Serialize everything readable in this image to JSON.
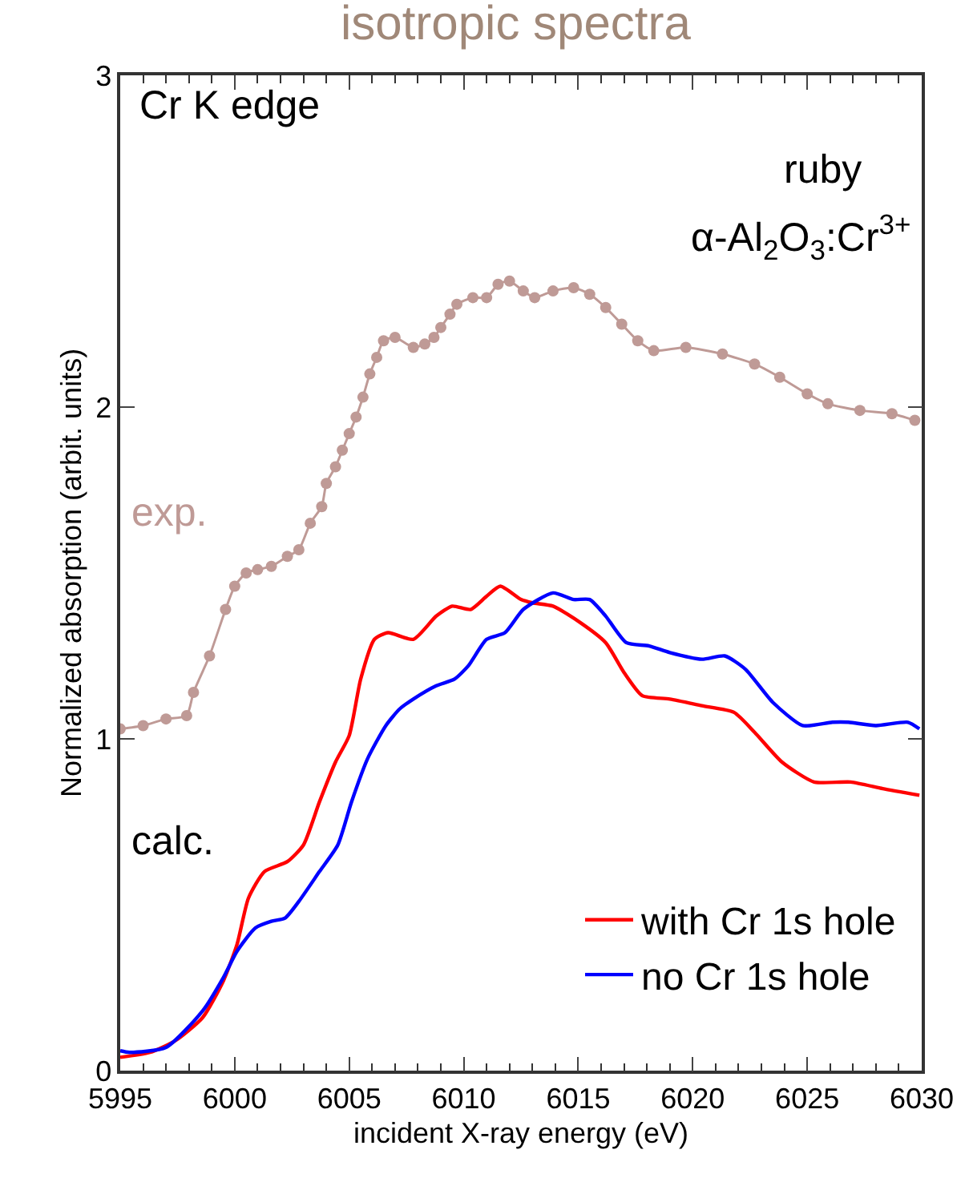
{
  "chart_data": {
    "type": "line",
    "title": "isotropic spectra",
    "xlabel": "incident X-ray energy (eV)",
    "ylabel": "Normalized absorption (arbit. units)",
    "annotations": [
      "Cr K edge",
      "ruby",
      "α-Al$_{2}$O$_{3}$:Cr$^{3+}$",
      "exp.",
      "calc."
    ],
    "xlim": [
      5995,
      6030
    ],
    "xticks": [
      5995,
      6000,
      6005,
      6010,
      6015,
      6020,
      6025,
      6030
    ],
    "ylim": [
      0,
      3
    ],
    "yticks": [
      0,
      1,
      2,
      3
    ],
    "legend": "bottom right",
    "series": [
      {
        "color": "#bf9a96",
        "marker": "circle",
        "x": [
          5995,
          5996,
          5997,
          5997.9,
          5998.2,
          5998.9,
          5999.6,
          6000,
          6000.5,
          6001,
          6001.6,
          6002.3,
          6002.8,
          6003.3,
          6003.8,
          6004.0,
          6004.4,
          6004.7,
          6005.0,
          6005.3,
          6005.6,
          6005.9,
          6006.2,
          6006.5,
          6007.0,
          6007.8,
          6008.3,
          6008.7,
          6009.0,
          6009.4,
          6009.7,
          6010.4,
          6011.0,
          6011.5,
          6012.0,
          6012.6,
          6013.1,
          6013.9,
          6014.8,
          6015.5,
          6016.2,
          6016.9,
          6017.6,
          6018.3,
          6019.7,
          6021.3,
          6022.7,
          6023.8,
          6025.0,
          6025.9,
          6027.3,
          6028.7,
          6029.7
        ],
        "values": [
          1.03,
          1.04,
          1.06,
          1.07,
          1.14,
          1.25,
          1.39,
          1.46,
          1.5,
          1.51,
          1.52,
          1.55,
          1.57,
          1.65,
          1.7,
          1.77,
          1.82,
          1.87,
          1.92,
          1.97,
          2.03,
          2.1,
          2.15,
          2.2,
          2.21,
          2.18,
          2.19,
          2.21,
          2.24,
          2.28,
          2.31,
          2.33,
          2.33,
          2.37,
          2.38,
          2.35,
          2.33,
          2.35,
          2.36,
          2.34,
          2.3,
          2.25,
          2.2,
          2.17,
          2.18,
          2.16,
          2.13,
          2.09,
          2.04,
          2.01,
          1.99,
          1.98,
          1.96
        ]
      },
      {
        "name": "with Cr 1s hole",
        "color": "#ff0000",
        "x": [
          5995,
          5996.3,
          5997.4,
          5998.6,
          5999.5,
          6000.1,
          6000.6,
          6001.3,
          6002.3,
          6003.0,
          6003.7,
          6004.4,
          6005.0,
          6005.5,
          6006.1,
          6006.7,
          6007.8,
          6008.8,
          6009.5,
          6010.3,
          6011.0,
          6011.6,
          6012.5,
          6013.0,
          6013.9,
          6015.1,
          6016.2,
          6017.0,
          6017.8,
          6019.0,
          6020.4,
          6021.8,
          6022.7,
          6023.9,
          6025.3,
          6026.9,
          6028.3,
          6029.9
        ],
        "values": [
          0.04,
          0.055,
          0.09,
          0.16,
          0.27,
          0.38,
          0.52,
          0.6,
          0.63,
          0.68,
          0.81,
          0.93,
          1.01,
          1.18,
          1.3,
          1.32,
          1.3,
          1.37,
          1.4,
          1.39,
          1.43,
          1.46,
          1.42,
          1.41,
          1.4,
          1.35,
          1.29,
          1.2,
          1.13,
          1.12,
          1.1,
          1.08,
          1.02,
          0.93,
          0.87,
          0.87,
          0.85,
          0.83
        ]
      },
      {
        "name": "no Cr 1s hole",
        "color": "#0000ff",
        "x": [
          5995,
          5995.4,
          5997.0,
          5998.6,
          5999.5,
          6000.1,
          6000.9,
          6001.6,
          6002.2,
          6002.8,
          6003.7,
          6004.5,
          6005.1,
          6005.8,
          6006.6,
          6007.2,
          6007.8,
          6008.8,
          6009.6,
          6010.2,
          6011.0,
          6011.8,
          6012.6,
          6013.9,
          6014.8,
          6015.5,
          6016.2,
          6017.1,
          6018.1,
          6019.0,
          6020.4,
          6021.4,
          6022.3,
          6023.5,
          6024.8,
          6026.1,
          6026.8,
          6028.0,
          6029.4,
          6029.9
        ],
        "values": [
          0.06,
          0.055,
          0.07,
          0.18,
          0.28,
          0.36,
          0.43,
          0.45,
          0.46,
          0.51,
          0.6,
          0.68,
          0.81,
          0.94,
          1.04,
          1.09,
          1.12,
          1.16,
          1.18,
          1.22,
          1.3,
          1.32,
          1.39,
          1.44,
          1.42,
          1.42,
          1.37,
          1.29,
          1.28,
          1.26,
          1.24,
          1.25,
          1.21,
          1.11,
          1.04,
          1.05,
          1.05,
          1.04,
          1.05,
          1.03
        ]
      }
    ]
  }
}
